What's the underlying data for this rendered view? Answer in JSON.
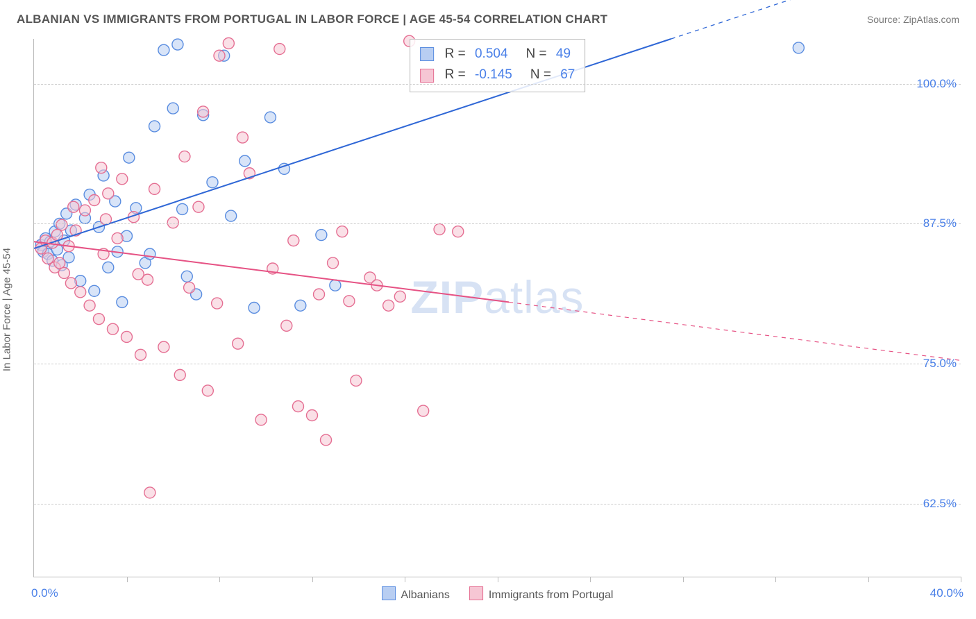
{
  "header": {
    "title": "ALBANIAN VS IMMIGRANTS FROM PORTUGAL IN LABOR FORCE | AGE 45-54 CORRELATION CHART",
    "source": "Source: ZipAtlas.com"
  },
  "chart": {
    "type": "scatter",
    "ylabel": "In Labor Force | Age 45-54",
    "xlim": [
      0,
      40
    ],
    "ylim": [
      56,
      104
    ],
    "xticks": [
      0,
      4,
      8,
      12,
      16,
      20,
      24,
      28,
      32,
      36,
      40
    ],
    "yticks": [
      62.5,
      75.0,
      87.5,
      100.0
    ],
    "ytick_labels": [
      "62.5%",
      "75.0%",
      "87.5%",
      "100.0%"
    ],
    "xaxis_left_label": "0.0%",
    "xaxis_right_label": "40.0%",
    "grid_color": "#cccccc",
    "axis_color": "#bbbbbb",
    "tick_label_color": "#4a80e8",
    "marker_radius": 8,
    "marker_opacity": 0.55,
    "line_width": 2,
    "series": [
      {
        "name": "Albanians",
        "color_fill": "#b8cef2",
        "color_stroke": "#5a8de0",
        "line_color": "#2f67d6",
        "r": 0.504,
        "n": 49,
        "trend": {
          "x1": 0,
          "y1": 85.3,
          "x2": 27.5,
          "y2": 104.0,
          "dash_from_x": 27.5,
          "dash_to_x": 40,
          "dash_to_y": 112.5
        },
        "points": [
          [
            0.3,
            85.6
          ],
          [
            0.4,
            85.0
          ],
          [
            0.5,
            86.2
          ],
          [
            0.6,
            84.8
          ],
          [
            0.7,
            85.9
          ],
          [
            0.8,
            84.2
          ],
          [
            0.9,
            86.8
          ],
          [
            1.0,
            85.2
          ],
          [
            1.1,
            87.5
          ],
          [
            1.2,
            83.8
          ],
          [
            1.3,
            86.0
          ],
          [
            1.4,
            88.4
          ],
          [
            1.5,
            84.5
          ],
          [
            1.6,
            86.9
          ],
          [
            1.8,
            89.2
          ],
          [
            2.0,
            82.4
          ],
          [
            2.2,
            88.0
          ],
          [
            2.4,
            90.1
          ],
          [
            2.6,
            81.5
          ],
          [
            2.8,
            87.2
          ],
          [
            3.0,
            91.8
          ],
          [
            3.2,
            83.6
          ],
          [
            3.5,
            89.5
          ],
          [
            3.8,
            80.5
          ],
          [
            4.1,
            93.4
          ],
          [
            4.4,
            88.9
          ],
          [
            4.8,
            84.0
          ],
          [
            5.2,
            96.2
          ],
          [
            5.6,
            103.0
          ],
          [
            6.0,
            97.8
          ],
          [
            6.2,
            103.5
          ],
          [
            6.6,
            82.8
          ],
          [
            7.0,
            81.2
          ],
          [
            7.3,
            97.2
          ],
          [
            7.7,
            91.2
          ],
          [
            8.2,
            102.5
          ],
          [
            8.5,
            88.2
          ],
          [
            9.1,
            93.1
          ],
          [
            9.5,
            80.0
          ],
          [
            10.2,
            97.0
          ],
          [
            10.8,
            92.4
          ],
          [
            11.5,
            80.2
          ],
          [
            12.4,
            86.5
          ],
          [
            13.0,
            82.0
          ],
          [
            3.6,
            85.0
          ],
          [
            4.0,
            86.4
          ],
          [
            5.0,
            84.8
          ],
          [
            6.4,
            88.8
          ],
          [
            33.0,
            103.2
          ]
        ]
      },
      {
        "name": "Immigrants from Portugal",
        "color_fill": "#f6c6d4",
        "color_stroke": "#e56f93",
        "line_color": "#e65284",
        "r": -0.145,
        "n": 67,
        "trend": {
          "x1": 0,
          "y1": 85.9,
          "x2": 20.5,
          "y2": 80.5,
          "dash_from_x": 20.5,
          "dash_to_x": 40,
          "dash_to_y": 75.3
        },
        "points": [
          [
            0.3,
            85.3
          ],
          [
            0.5,
            86.0
          ],
          [
            0.6,
            84.4
          ],
          [
            0.8,
            85.8
          ],
          [
            0.9,
            83.6
          ],
          [
            1.0,
            86.5
          ],
          [
            1.1,
            84.0
          ],
          [
            1.2,
            87.4
          ],
          [
            1.3,
            83.1
          ],
          [
            1.5,
            85.5
          ],
          [
            1.6,
            82.2
          ],
          [
            1.8,
            86.9
          ],
          [
            2.0,
            81.4
          ],
          [
            2.2,
            88.7
          ],
          [
            2.4,
            80.2
          ],
          [
            2.6,
            89.6
          ],
          [
            2.8,
            79.0
          ],
          [
            3.0,
            84.8
          ],
          [
            3.2,
            90.2
          ],
          [
            3.4,
            78.1
          ],
          [
            3.6,
            86.2
          ],
          [
            3.8,
            91.5
          ],
          [
            4.0,
            77.4
          ],
          [
            4.3,
            88.1
          ],
          [
            4.6,
            75.8
          ],
          [
            4.9,
            82.5
          ],
          [
            5.2,
            90.6
          ],
          [
            5.6,
            76.5
          ],
          [
            6.0,
            87.6
          ],
          [
            6.3,
            74.0
          ],
          [
            6.7,
            81.8
          ],
          [
            7.1,
            89.0
          ],
          [
            7.5,
            72.6
          ],
          [
            7.9,
            80.4
          ],
          [
            8.4,
            103.6
          ],
          [
            8.8,
            76.8
          ],
          [
            9.3,
            92.0
          ],
          [
            9.8,
            70.0
          ],
          [
            10.3,
            83.5
          ],
          [
            10.9,
            78.4
          ],
          [
            11.4,
            71.2
          ],
          [
            12.0,
            70.4
          ],
          [
            12.6,
            68.2
          ],
          [
            13.3,
            86.8
          ],
          [
            13.9,
            73.5
          ],
          [
            14.5,
            82.7
          ],
          [
            15.3,
            80.2
          ],
          [
            16.2,
            103.8
          ],
          [
            16.8,
            70.8
          ],
          [
            10.6,
            103.1
          ],
          [
            5.0,
            63.5
          ],
          [
            3.1,
            87.9
          ],
          [
            4.5,
            83.0
          ],
          [
            6.5,
            93.5
          ],
          [
            7.3,
            97.5
          ],
          [
            9.0,
            95.2
          ],
          [
            2.9,
            92.5
          ],
          [
            1.7,
            89.0
          ],
          [
            12.3,
            81.2
          ],
          [
            13.6,
            80.6
          ],
          [
            8.0,
            102.5
          ],
          [
            11.2,
            86.0
          ],
          [
            12.9,
            84.0
          ],
          [
            14.8,
            82.0
          ],
          [
            15.8,
            81.0
          ],
          [
            17.5,
            87.0
          ],
          [
            18.3,
            86.8
          ]
        ]
      }
    ]
  },
  "stats_box": {
    "rows": [
      {
        "sw_fill": "#b8cef2",
        "sw_stroke": "#5a8de0",
        "r": "0.504",
        "n": "49"
      },
      {
        "sw_fill": "#f6c6d4",
        "sw_stroke": "#e56f93",
        "r": "-0.145",
        "n": "67"
      }
    ]
  },
  "legend_bottom": [
    {
      "sw_fill": "#b8cef2",
      "sw_stroke": "#5a8de0",
      "label": "Albanians"
    },
    {
      "sw_fill": "#f6c6d4",
      "sw_stroke": "#e56f93",
      "label": "Immigrants from Portugal"
    }
  ],
  "watermark": {
    "bold": "ZIP",
    "rest": "atlas"
  }
}
